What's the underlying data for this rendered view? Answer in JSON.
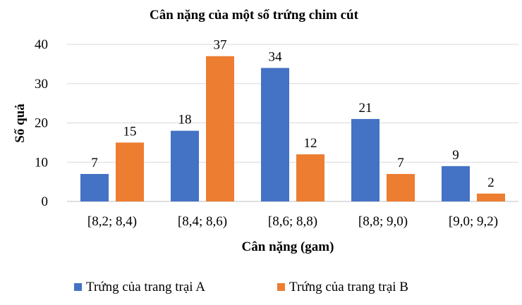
{
  "chart_data": {
    "type": "bar",
    "title": "Cân nặng của một số trứng chim cút",
    "xlabel": "Cân nặng (gam)",
    "ylabel": "Số quả",
    "categories": [
      "[8,2; 8,4)",
      "[8,4; 8,6)",
      "[8,6; 8,8)",
      "[8,8; 9,0)",
      "[9,0; 9,2)"
    ],
    "series": [
      {
        "name": "Trứng của trang trại A",
        "values": [
          7,
          18,
          34,
          21,
          9
        ],
        "color": "#4472C4"
      },
      {
        "name": "Trứng của trang trại B",
        "values": [
          15,
          37,
          12,
          7,
          2
        ],
        "color": "#ED7D31"
      }
    ],
    "ylim": [
      0,
      40
    ],
    "yticks": [
      0,
      10,
      20,
      30,
      40
    ],
    "grid": true,
    "data_labels": true,
    "legend_position": "bottom"
  }
}
